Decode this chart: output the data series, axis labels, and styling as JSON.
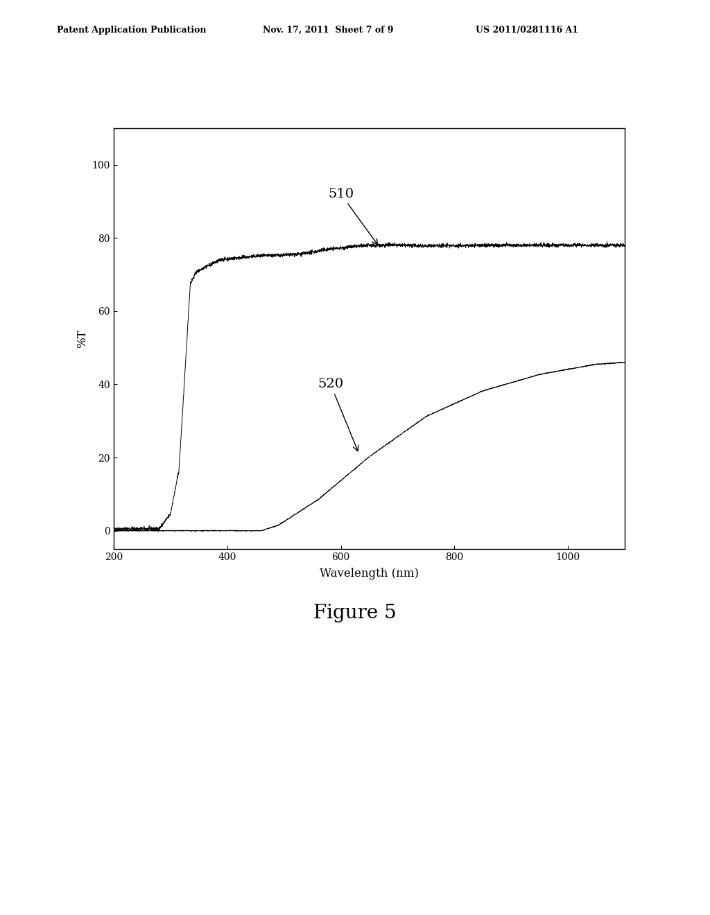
{
  "header_left": "Patent Application Publication",
  "header_center": "Nov. 17, 2011  Sheet 7 of 9",
  "header_right": "US 2011/0281116 A1",
  "figure_caption": "Figure 5",
  "xlabel": "Wavelength (nm)",
  "ylabel": "%T",
  "xlim": [
    200,
    1100
  ],
  "ylim": [
    -5,
    110
  ],
  "xticks": [
    200,
    400,
    600,
    800,
    1000
  ],
  "yticks": [
    0,
    20,
    40,
    60,
    80,
    100
  ],
  "label_510": "510",
  "label_520": "520",
  "line_color": "#000000",
  "background_color": "#ffffff",
  "header_fontsize": 9,
  "axis_fontsize": 12,
  "caption_fontsize": 20,
  "annotation_fontsize": 14
}
